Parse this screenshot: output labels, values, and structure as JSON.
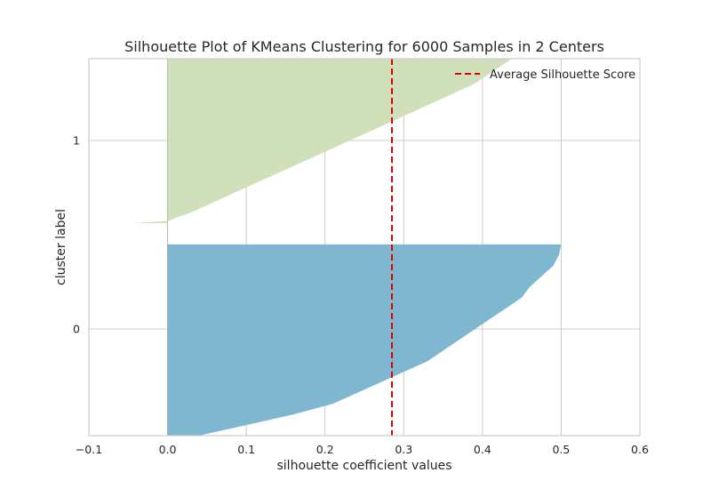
{
  "chart_data": {
    "type": "area",
    "title": "Silhouette Plot of KMeans Clustering for 6000 Samples in 2 Centers",
    "xlabel": "silhouette coefficient values",
    "ylabel": "cluster label",
    "xlim": [
      -0.1,
      0.6
    ],
    "x_ticks": [
      "−0.1",
      "0.0",
      "0.1",
      "0.2",
      "0.3",
      "0.4",
      "0.5",
      "0.6"
    ],
    "y_ticks": [
      "0",
      "1"
    ],
    "grid": true,
    "legend_position": "top-right",
    "average_score": {
      "name": "Average Silhouette Score",
      "value": 0.285,
      "color": "#e00000",
      "style": "dashed"
    },
    "series": [
      {
        "cluster": "0",
        "color": "#7fb7d0",
        "edge_color": "#5d95ad",
        "profile": [
          [
            0.0,
            0.04
          ],
          [
            0.05,
            0.1
          ],
          [
            0.1,
            0.16
          ],
          [
            0.15,
            0.21
          ],
          [
            0.2,
            0.24
          ],
          [
            0.25,
            0.27
          ],
          [
            0.3,
            0.3
          ],
          [
            0.35,
            0.33
          ],
          [
            0.4,
            0.35
          ],
          [
            0.45,
            0.37
          ],
          [
            0.5,
            0.39
          ],
          [
            0.55,
            0.41
          ],
          [
            0.6,
            0.43
          ],
          [
            0.65,
            0.45
          ],
          [
            0.7,
            0.46
          ],
          [
            0.75,
            0.475
          ],
          [
            0.8,
            0.49
          ],
          [
            0.85,
            0.497
          ],
          [
            0.9,
            0.5
          ]
        ]
      },
      {
        "cluster": "1",
        "color": "#d0e0bb",
        "edge_color": "#b5c99c",
        "profile": [
          [
            0.0,
            -0.045
          ],
          [
            0.01,
            0.0
          ],
          [
            0.05,
            0.03
          ],
          [
            0.1,
            0.06
          ],
          [
            0.15,
            0.09
          ],
          [
            0.2,
            0.12
          ],
          [
            0.25,
            0.15
          ],
          [
            0.3,
            0.18
          ],
          [
            0.35,
            0.21
          ],
          [
            0.4,
            0.24
          ],
          [
            0.45,
            0.27
          ],
          [
            0.5,
            0.3
          ],
          [
            0.55,
            0.33
          ],
          [
            0.6,
            0.36
          ],
          [
            0.65,
            0.39
          ],
          [
            0.7,
            0.41
          ],
          [
            0.75,
            0.43
          ],
          [
            0.8,
            0.45
          ]
        ]
      }
    ]
  }
}
